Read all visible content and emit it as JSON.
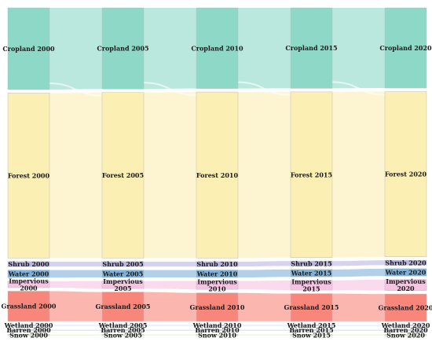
{
  "chart_data": {
    "type": "sankey",
    "years": [
      "2000",
      "2005",
      "2010",
      "2015",
      "2020"
    ],
    "categories": [
      {
        "key": "cropland",
        "color": "#8ed8c8",
        "labels": [
          "Cropland 2000",
          "Cropland 2005",
          "Cropland 2010",
          "Cropland 2015",
          "Cropland 2020"
        ]
      },
      {
        "key": "forest",
        "color": "#fcefb4",
        "labels": [
          "Forest 2000",
          "Forest 2005",
          "Forest 2010",
          "Forest 2015",
          "Forest 2020"
        ]
      },
      {
        "key": "shrub",
        "color": "#b9b6e3",
        "labels": [
          "Shrub 2000",
          "Shrub 2005",
          "Shrub 2010",
          "Shrub 2015",
          "Shrub 2020"
        ]
      },
      {
        "key": "water",
        "color": "#7fb2d9",
        "labels": [
          "Water 2000",
          "Water 2005",
          "Water 2010",
          "Water 2015",
          "Water 2020"
        ]
      },
      {
        "key": "impervious",
        "color": "#f7c3e3",
        "labels": [
          "Impervious\n2000",
          "Impervious\n2005",
          "Impervious\n2010",
          "Impervious\n2015",
          "Impervious\n2020"
        ]
      },
      {
        "key": "grassland",
        "color": "#f8867a",
        "labels": [
          "Grassland 2000",
          "Grassland 2005",
          "Grassland 2010",
          "Grassland 2015",
          "Grassland 2020"
        ]
      },
      {
        "key": "wetland",
        "color": "#cfe6ff",
        "labels": [
          "Wetland 2000",
          "Wetland 2005",
          "Wetland 2010",
          "Wetland 2015",
          "Wetland 2020"
        ]
      },
      {
        "key": "barren",
        "color": "#d8d8d8",
        "labels": [
          "Barren 2000",
          "Barren 2005",
          "Barren 2010",
          "Barren 2015",
          "Barren 2020"
        ]
      },
      {
        "key": "snow",
        "color": "#e0f2d0",
        "labels": [
          "Snow 2000",
          "Snow 2005",
          "Snow 2010",
          "Snow 2015",
          "Snow 2020"
        ]
      }
    ],
    "values": {
      "cropland": [
        25.0,
        25.0,
        25.0,
        25.0,
        25.0
      ],
      "forest": [
        50.5,
        51.0,
        51.5,
        51.5,
        51.5
      ],
      "shrub": [
        1.5,
        1.5,
        1.5,
        1.5,
        1.5
      ],
      "water": [
        2.3,
        2.3,
        2.3,
        2.3,
        2.3
      ],
      "impervious": [
        2.0,
        2.3,
        2.6,
        3.0,
        3.4
      ],
      "grassland": [
        9.2,
        9.0,
        8.8,
        8.6,
        8.5
      ],
      "wetland": [
        0.3,
        0.3,
        0.3,
        0.3,
        0.3
      ],
      "barren": [
        0.3,
        0.3,
        0.3,
        0.3,
        0.3
      ],
      "snow": [
        0.3,
        0.3,
        0.3,
        0.3,
        0.3
      ]
    }
  }
}
